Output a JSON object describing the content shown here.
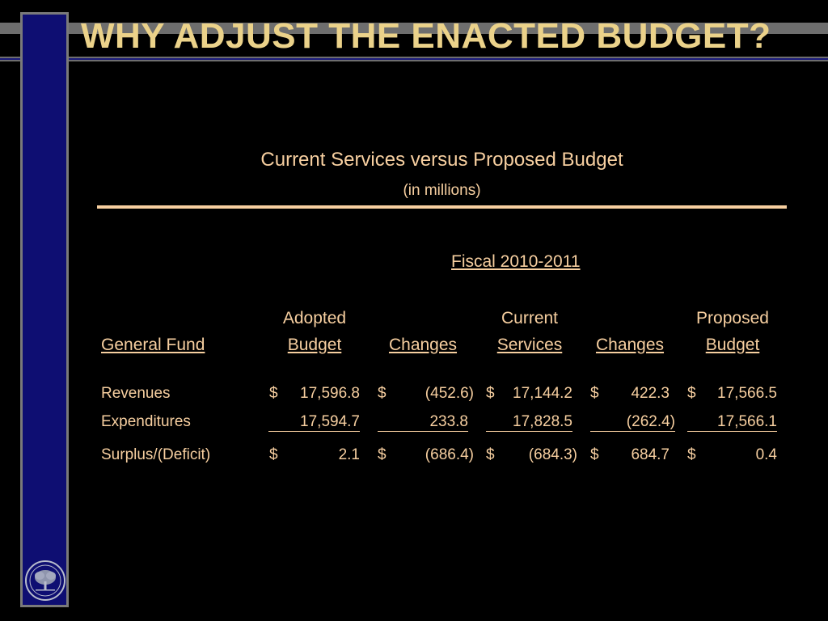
{
  "slide": {
    "title": "WHY ADJUST THE ENACTED BUDGET?",
    "subtitle": "Current Services versus Proposed Budget",
    "units": "(in millions)",
    "fiscal": "Fiscal 2010-2011"
  },
  "headers": {
    "general_fund": "General Fund",
    "adopted_top": "Adopted",
    "adopted_bottom": "Budget",
    "changes1": "Changes",
    "current_top": "Current",
    "current_bottom": "Services",
    "changes2": "Changes",
    "proposed_top": "Proposed",
    "proposed_bottom": "Budget"
  },
  "rows": [
    {
      "label": "Revenues",
      "adopted": "17,596.8",
      "changes1": "(452.6)",
      "current": "17,144.2",
      "changes2": "422.3",
      "proposed": "17,566.5"
    },
    {
      "label": "Expenditures",
      "adopted": "17,594.7",
      "changes1": "233.8",
      "current": "17,828.5",
      "changes2": "(262.4)",
      "proposed": "17,566.1"
    },
    {
      "label": "Surplus/(Deficit)",
      "adopted": "2.1",
      "changes1": "(686.4)",
      "current": "(684.3)",
      "changes2": "684.7",
      "proposed": "0.4"
    }
  ],
  "currency": "$",
  "colors": {
    "background": "#000000",
    "text": "#f7cfa0",
    "title": "#ebd28a",
    "sidebar": "#0e0e72"
  }
}
